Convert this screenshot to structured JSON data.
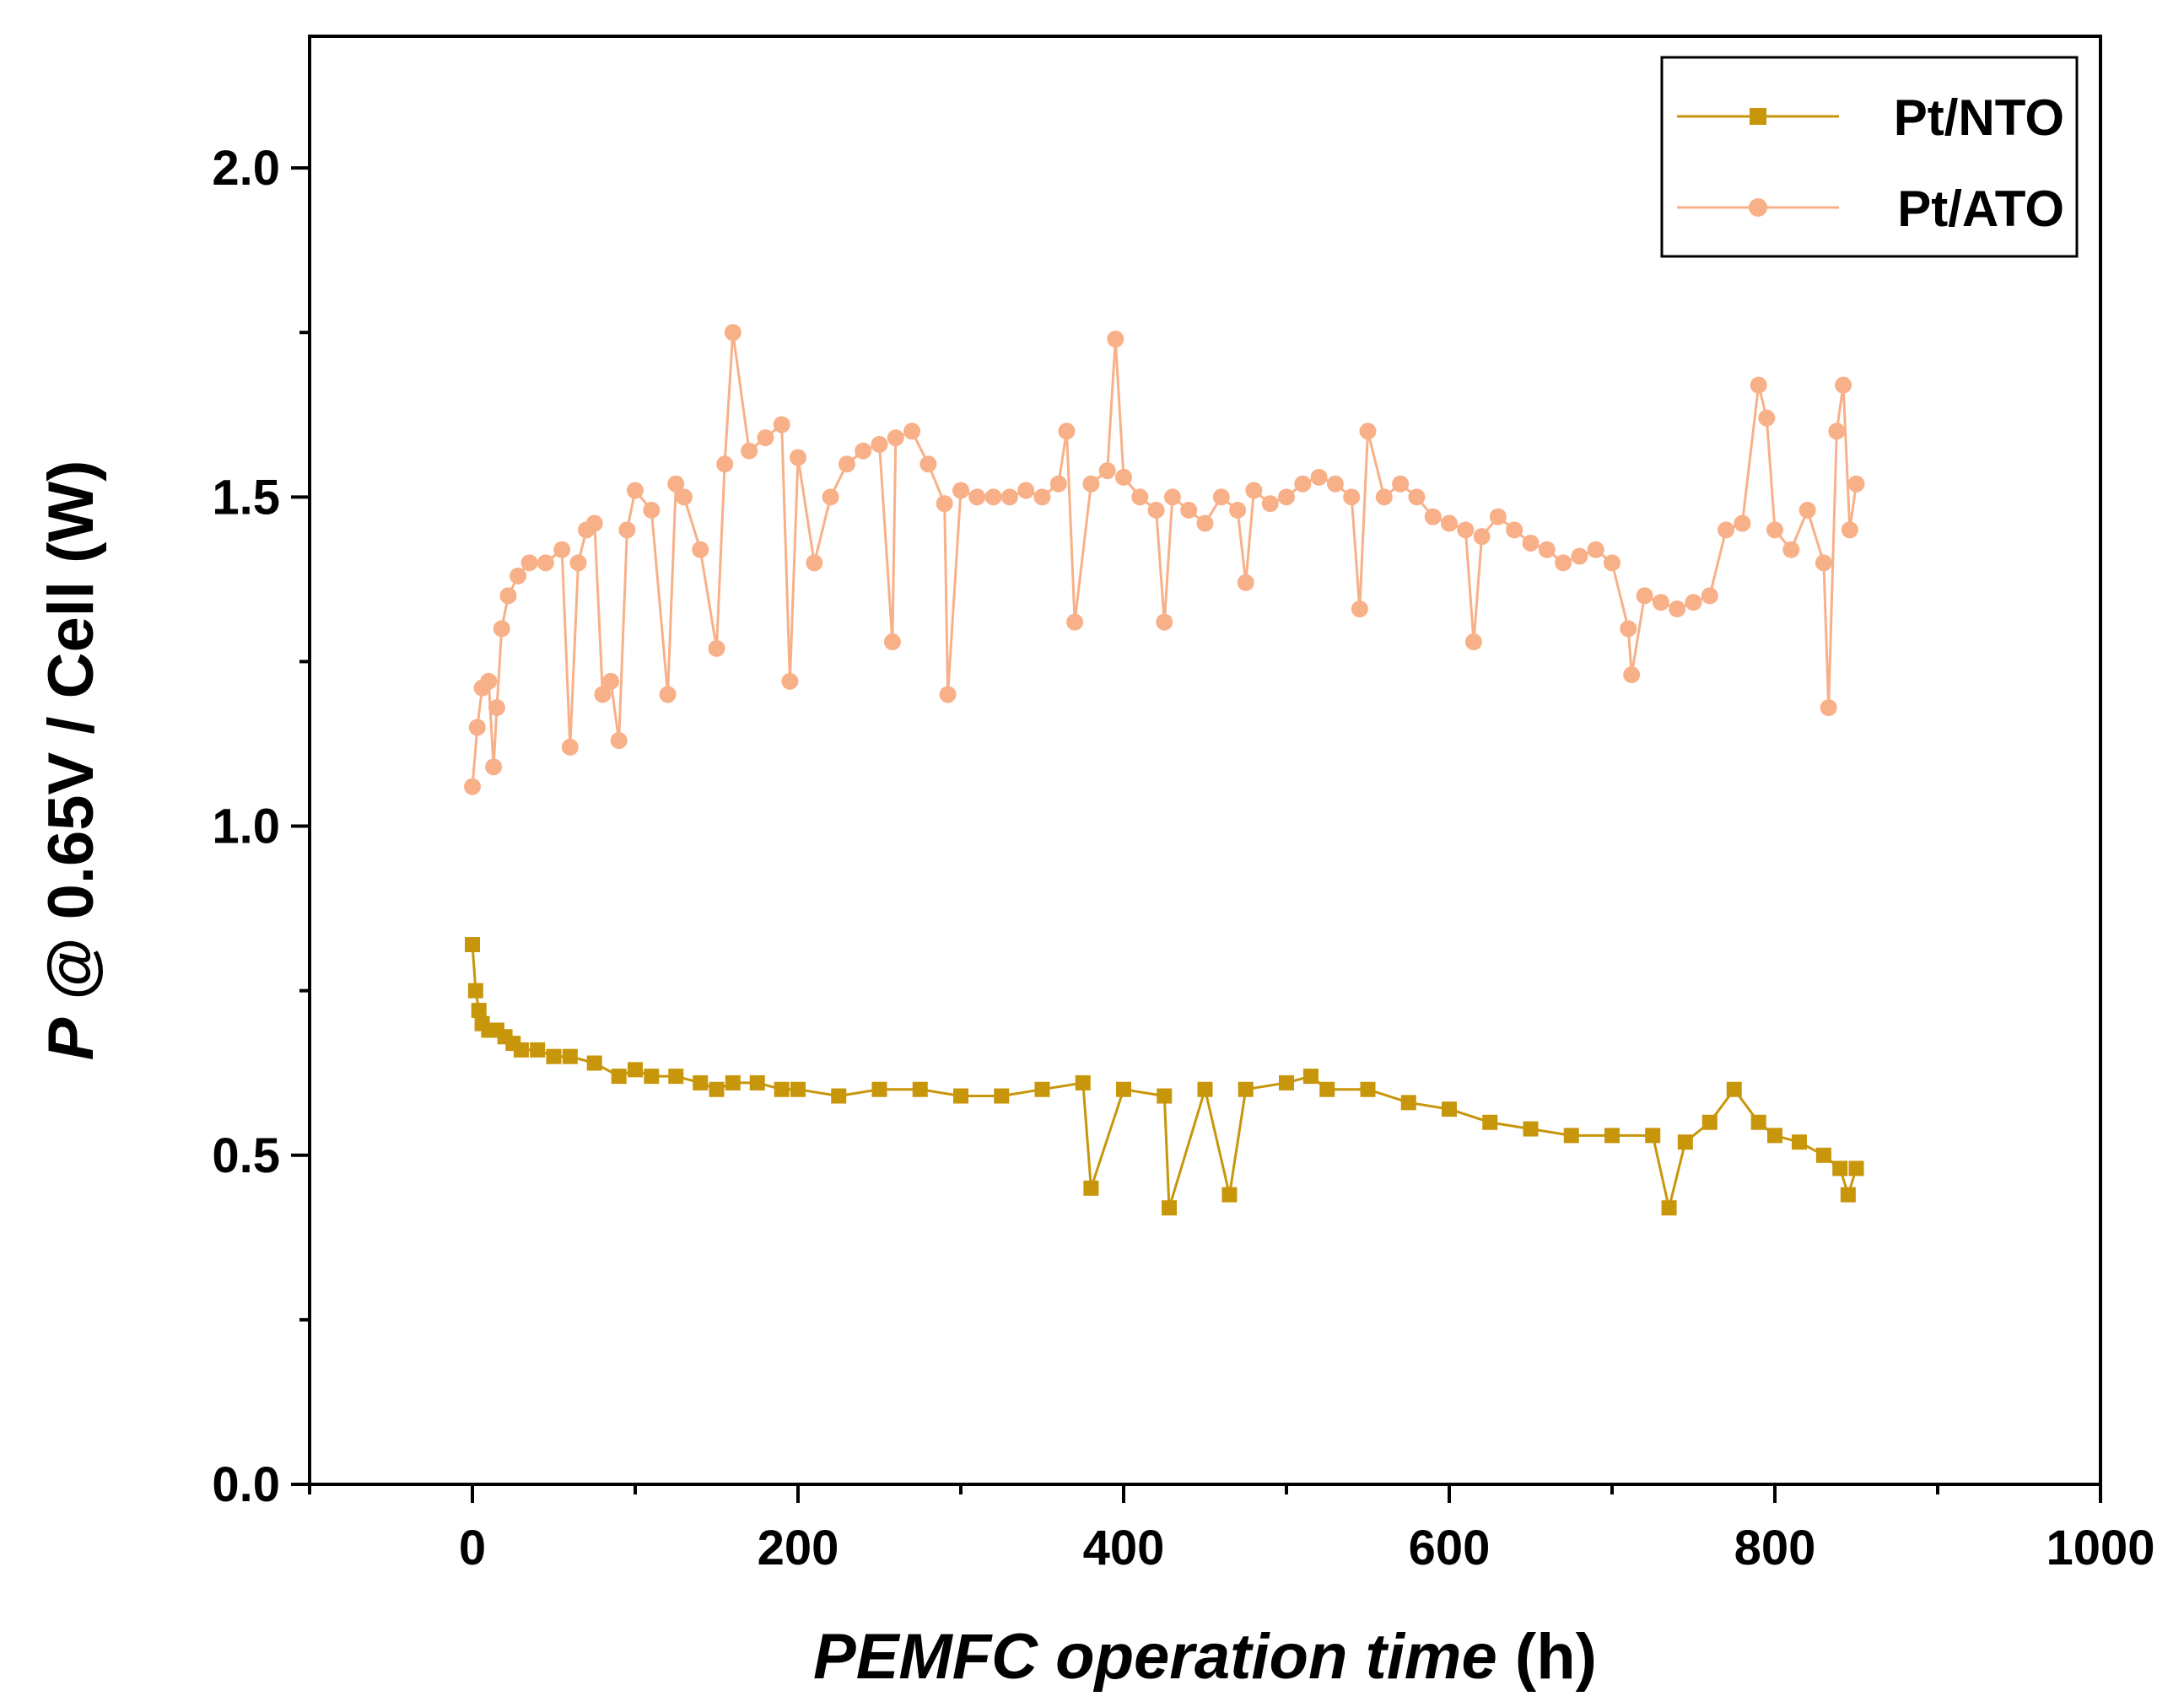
{
  "chart_data": {
    "type": "line",
    "title": "",
    "xlabel": {
      "italic": "PEMFC operation time",
      "plain": " (h)"
    },
    "ylabel": {
      "italic": "P",
      "plain": " @ 0.65V / Cell (W)"
    },
    "xlim": [
      -100,
      1000
    ],
    "ylim": [
      0,
      2.2
    ],
    "x_ticks": [
      0,
      200,
      400,
      600,
      800,
      1000
    ],
    "x_tick_labels": [
      "0",
      "200",
      "400",
      "600",
      "800",
      "1000"
    ],
    "y_ticks": [
      0,
      0.5,
      1.0,
      1.5,
      2.0
    ],
    "y_tick_labels": [
      "0.0",
      "0.5",
      "1.0",
      "1.5",
      "2.0"
    ],
    "legend_position": "top-right",
    "series": [
      {
        "name": "Pt/NTO",
        "color": "#c8960a",
        "marker": "square",
        "x": [
          0,
          2,
          4,
          6,
          10,
          15,
          20,
          25,
          30,
          40,
          50,
          60,
          75,
          90,
          100,
          110,
          125,
          140,
          150,
          160,
          175,
          190,
          200,
          225,
          250,
          275,
          300,
          325,
          350,
          375,
          380,
          400,
          425,
          428,
          450,
          465,
          475,
          500,
          515,
          525,
          550,
          575,
          600,
          625,
          650,
          675,
          700,
          725,
          735,
          745,
          760,
          775,
          790,
          800,
          815,
          830,
          840,
          845,
          850
        ],
        "y": [
          0.82,
          0.75,
          0.72,
          0.7,
          0.69,
          0.69,
          0.68,
          0.67,
          0.66,
          0.66,
          0.65,
          0.65,
          0.64,
          0.62,
          0.63,
          0.62,
          0.62,
          0.61,
          0.6,
          0.61,
          0.61,
          0.6,
          0.6,
          0.59,
          0.6,
          0.6,
          0.59,
          0.59,
          0.6,
          0.61,
          0.45,
          0.6,
          0.59,
          0.42,
          0.6,
          0.44,
          0.6,
          0.61,
          0.62,
          0.6,
          0.6,
          0.58,
          0.57,
          0.55,
          0.54,
          0.53,
          0.53,
          0.53,
          0.42,
          0.52,
          0.55,
          0.6,
          0.55,
          0.53,
          0.52,
          0.5,
          0.48,
          0.44,
          0.48
        ]
      },
      {
        "name": "Pt/ATO",
        "color": "#f8b088",
        "marker": "circle",
        "x": [
          0,
          3,
          6,
          10,
          13,
          15,
          18,
          22,
          28,
          35,
          45,
          55,
          60,
          65,
          70,
          75,
          80,
          85,
          90,
          95,
          100,
          110,
          120,
          125,
          130,
          140,
          150,
          155,
          160,
          170,
          180,
          190,
          195,
          200,
          210,
          220,
          230,
          240,
          250,
          258,
          260,
          270,
          280,
          290,
          292,
          300,
          310,
          320,
          330,
          340,
          350,
          360,
          365,
          370,
          380,
          390,
          395,
          400,
          410,
          420,
          425,
          430,
          440,
          450,
          460,
          470,
          475,
          480,
          490,
          500,
          510,
          520,
          530,
          540,
          545,
          550,
          560,
          570,
          580,
          590,
          600,
          610,
          615,
          620,
          630,
          640,
          650,
          660,
          670,
          680,
          690,
          700,
          710,
          712,
          720,
          730,
          740,
          750,
          760,
          770,
          780,
          790,
          795,
          800,
          810,
          820,
          830,
          833,
          838,
          842,
          846,
          850
        ],
        "y": [
          1.06,
          1.15,
          1.21,
          1.22,
          1.09,
          1.18,
          1.3,
          1.35,
          1.38,
          1.4,
          1.4,
          1.42,
          1.12,
          1.4,
          1.45,
          1.46,
          1.2,
          1.22,
          1.13,
          1.45,
          1.51,
          1.48,
          1.2,
          1.52,
          1.5,
          1.42,
          1.27,
          1.55,
          1.75,
          1.57,
          1.59,
          1.61,
          1.22,
          1.56,
          1.4,
          1.5,
          1.55,
          1.57,
          1.58,
          1.28,
          1.59,
          1.6,
          1.55,
          1.49,
          1.2,
          1.51,
          1.5,
          1.5,
          1.5,
          1.51,
          1.5,
          1.52,
          1.6,
          1.31,
          1.52,
          1.54,
          1.74,
          1.53,
          1.5,
          1.48,
          1.31,
          1.5,
          1.48,
          1.46,
          1.5,
          1.48,
          1.37,
          1.51,
          1.49,
          1.5,
          1.52,
          1.53,
          1.52,
          1.5,
          1.33,
          1.6,
          1.5,
          1.52,
          1.5,
          1.47,
          1.46,
          1.45,
          1.28,
          1.44,
          1.47,
          1.45,
          1.43,
          1.42,
          1.4,
          1.41,
          1.42,
          1.4,
          1.3,
          1.23,
          1.35,
          1.34,
          1.33,
          1.34,
          1.35,
          1.45,
          1.46,
          1.67,
          1.62,
          1.45,
          1.42,
          1.48,
          1.4,
          1.18,
          1.6,
          1.67,
          1.45,
          1.52
        ]
      }
    ]
  }
}
